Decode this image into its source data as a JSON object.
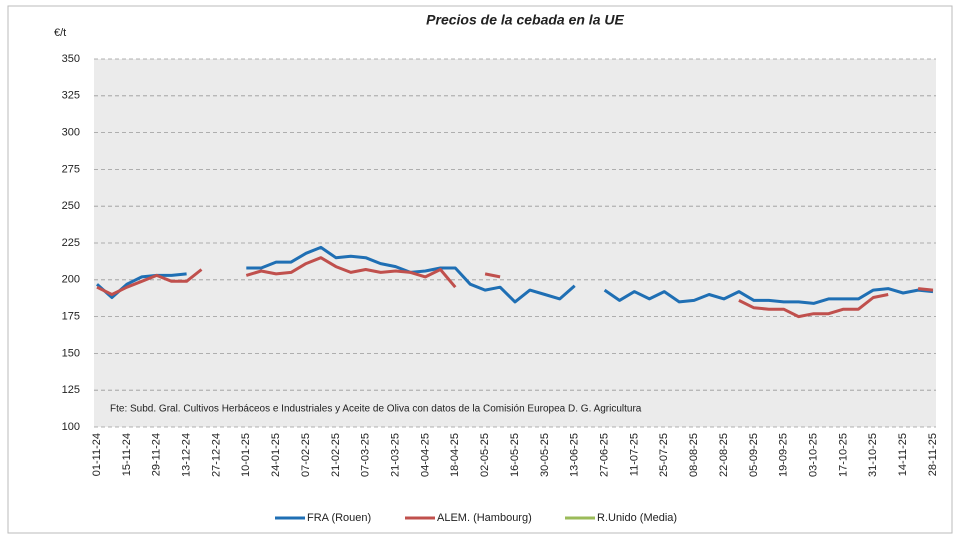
{
  "chart_data": {
    "type": "line",
    "title": "Precios de la cebada en la UE",
    "y_label": "€/t",
    "annotation": "Fte: Subd. Gral. Cultivos Herbáceos e Industriales y Aceite de Oliva con datos de la Comisión Europea D. G. Agricultura",
    "categories": [
      "01-11-24",
      null,
      "15-11-24",
      null,
      "29-11-24",
      null,
      "13-12-24",
      null,
      "27-12-24",
      null,
      "10-01-25",
      null,
      "24-01-25",
      null,
      "07-02-25",
      null,
      "21-02-25",
      null,
      "07-03-25",
      null,
      "21-03-25",
      null,
      "04-04-25",
      null,
      "18-04-25",
      null,
      "02-05-25",
      null,
      "16-05-25",
      null,
      "30-05-25",
      null,
      "13-06-25",
      null,
      "27-06-25",
      null,
      "11-07-25",
      null,
      "25-07-25",
      null,
      "08-08-25",
      null,
      "22-08-25",
      null,
      "05-09-25",
      null,
      "19-09-25",
      null,
      "03-10-25",
      null,
      "17-10-25",
      null,
      "31-10-25",
      null,
      "14-11-25",
      null,
      "28-11-25"
    ],
    "series": [
      {
        "name": "FRA (Rouen)",
        "color": "#1f6fb4",
        "values": [
          197,
          188,
          197,
          202,
          203,
          203,
          204,
          null,
          null,
          null,
          208,
          208,
          212,
          212,
          218,
          222,
          215,
          216,
          215,
          211,
          209,
          205,
          206,
          208,
          208,
          197,
          193,
          195,
          185,
          193,
          190,
          187,
          196,
          null,
          193,
          186,
          192,
          187,
          192,
          185,
          186,
          190,
          187,
          192,
          186,
          186,
          185,
          185,
          184,
          187,
          187,
          187,
          193,
          194,
          191,
          193,
          192
        ]
      },
      {
        "name": "ALEM. (Hambourg)",
        "color": "#c0504d",
        "values": [
          195,
          190,
          195,
          199,
          203,
          199,
          199,
          207,
          null,
          null,
          203,
          206,
          204,
          205,
          211,
          215,
          209,
          205,
          207,
          205,
          206,
          205,
          202,
          207,
          195,
          null,
          204,
          202,
          null,
          null,
          null,
          null,
          null,
          null,
          null,
          null,
          null,
          null,
          null,
          null,
          null,
          null,
          null,
          186,
          181,
          180,
          180,
          175,
          177,
          177,
          180,
          180,
          188,
          190,
          null,
          194,
          193
        ]
      },
      {
        "name": "R.Unido (Media)",
        "color": "#9bbb59",
        "values": [
          null,
          null,
          null,
          null,
          null,
          null,
          null,
          null,
          null,
          null,
          null,
          null,
          null,
          null,
          null,
          null,
          null,
          null,
          null,
          null,
          null,
          null,
          null,
          null,
          null,
          null,
          null,
          null,
          null,
          null,
          null,
          null,
          null,
          null,
          null,
          null,
          null,
          null,
          null,
          null,
          null,
          null,
          null,
          null,
          null,
          null,
          null,
          null,
          null,
          null,
          null,
          null,
          null,
          null,
          null,
          null,
          null
        ]
      }
    ],
    "ylim": [
      100,
      350
    ],
    "yticks": [
      100,
      125,
      150,
      175,
      200,
      225,
      250,
      275,
      300,
      325,
      350
    ],
    "grid": true
  }
}
